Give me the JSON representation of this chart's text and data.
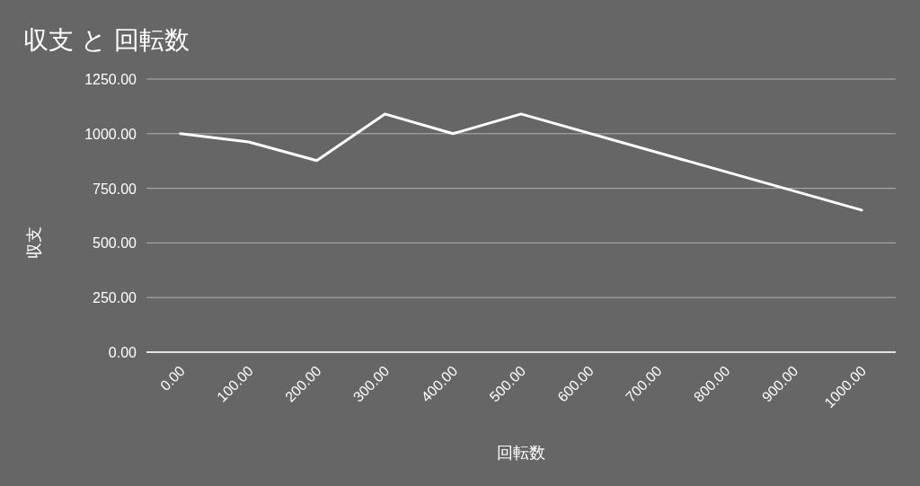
{
  "chart_data": {
    "type": "line",
    "title": "収支 と 回転数",
    "xlabel": "回転数",
    "ylabel": "収支",
    "x": [
      0,
      100,
      200,
      300,
      400,
      500,
      1000
    ],
    "series": [
      {
        "color": "#ffffff",
        "values": [
          1000,
          962,
          877,
          1090,
          1000,
          1090,
          650
        ]
      }
    ],
    "xlim": [
      -50,
      1050
    ],
    "ylim": [
      0,
      1250
    ],
    "xticks": [
      {
        "value": 0,
        "label": "0.00"
      },
      {
        "value": 100,
        "label": "100.00"
      },
      {
        "value": 200,
        "label": "200.00"
      },
      {
        "value": 300,
        "label": "300.00"
      },
      {
        "value": 400,
        "label": "400.00"
      },
      {
        "value": 500,
        "label": "500.00"
      },
      {
        "value": 600,
        "label": "600.00"
      },
      {
        "value": 700,
        "label": "700.00"
      },
      {
        "value": 800,
        "label": "800.00"
      },
      {
        "value": 900,
        "label": "900.00"
      },
      {
        "value": 1000,
        "label": "1000.00"
      }
    ],
    "yticks": [
      {
        "value": 0,
        "label": "0.00"
      },
      {
        "value": 250,
        "label": "250.00"
      },
      {
        "value": 500,
        "label": "500.00"
      },
      {
        "value": 750,
        "label": "750.00"
      },
      {
        "value": 1000,
        "label": "1000.00"
      },
      {
        "value": 1250,
        "label": "1250.00"
      }
    ],
    "grid": "y"
  }
}
